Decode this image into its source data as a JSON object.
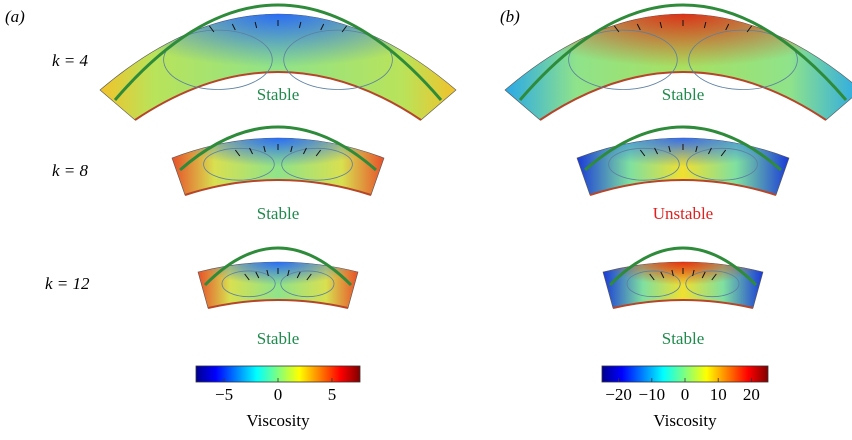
{
  "row_labels": [
    "k = 4",
    "k = 8",
    "k = 12"
  ],
  "panels": [
    {
      "label": "(a)",
      "status": [
        "Stable",
        "Stable",
        "Stable"
      ],
      "colorbar": {
        "label": "Viscosity",
        "lim": [
          -7.6,
          7.6
        ],
        "ticks": [
          {
            "value": -5,
            "label": "−5"
          },
          0,
          5
        ]
      }
    },
    {
      "label": "(b)",
      "status": [
        "Stable",
        "Unstable",
        "Stable"
      ],
      "colorbar": {
        "label": "Viscosity",
        "lim": [
          -25,
          25
        ],
        "ticks": [
          {
            "value": -20,
            "label": "−20"
          },
          {
            "value": -10,
            "label": "−10"
          },
          0,
          10,
          20
        ]
      }
    }
  ]
}
